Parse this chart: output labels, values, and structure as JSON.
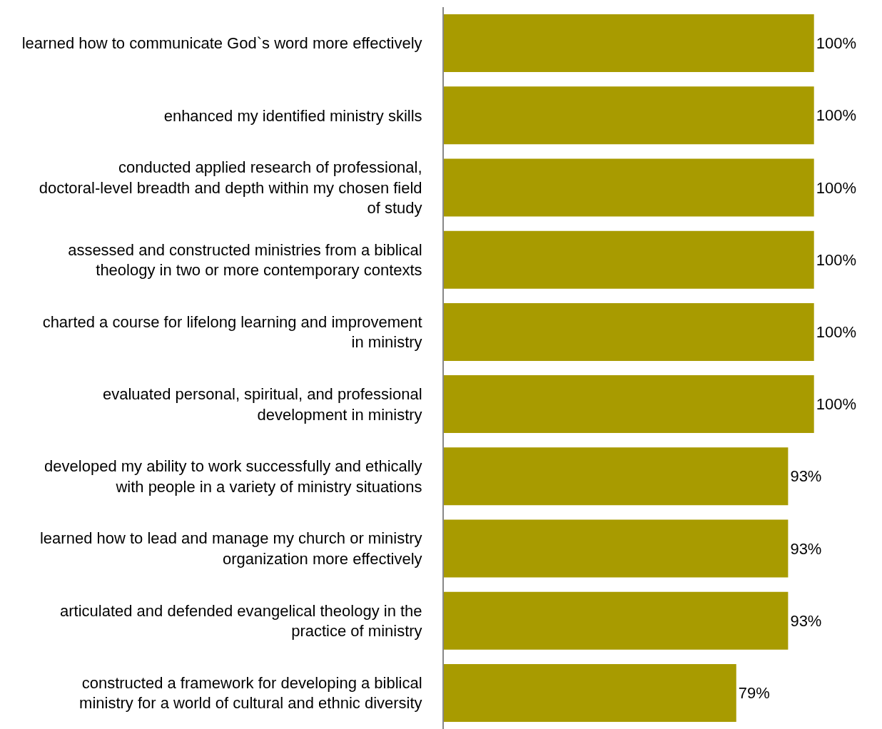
{
  "chart_data": {
    "type": "bar",
    "orientation": "horizontal",
    "categories": [
      "learned how to communicate God`s word more effectively",
      "enhanced my identified ministry skills",
      "conducted applied research of professional, doctoral-level breadth and depth within my chosen field of study",
      "assessed and constructed ministries from a biblical theology in two or more contemporary contexts",
      "charted a course for lifelong learning and improvement in ministry",
      "evaluated personal, spiritual, and professional development in ministry",
      "developed my ability to work successfully and ethically with people in a variety of ministry situations",
      "learned how to lead and manage my church or ministry organization more effectively",
      "articulated and defended evangelical theology in the practice of ministry",
      "constructed a framework for developing a biblical ministry for a world of cultural and ethnic diversity"
    ],
    "values": [
      100,
      100,
      100,
      100,
      100,
      100,
      93,
      93,
      93,
      79
    ],
    "value_labels": [
      "100%",
      "100%",
      "100%",
      "100%",
      "100%",
      "100%",
      "93%",
      "93%",
      "93%",
      "79%"
    ],
    "color": "#a89b00"
  }
}
